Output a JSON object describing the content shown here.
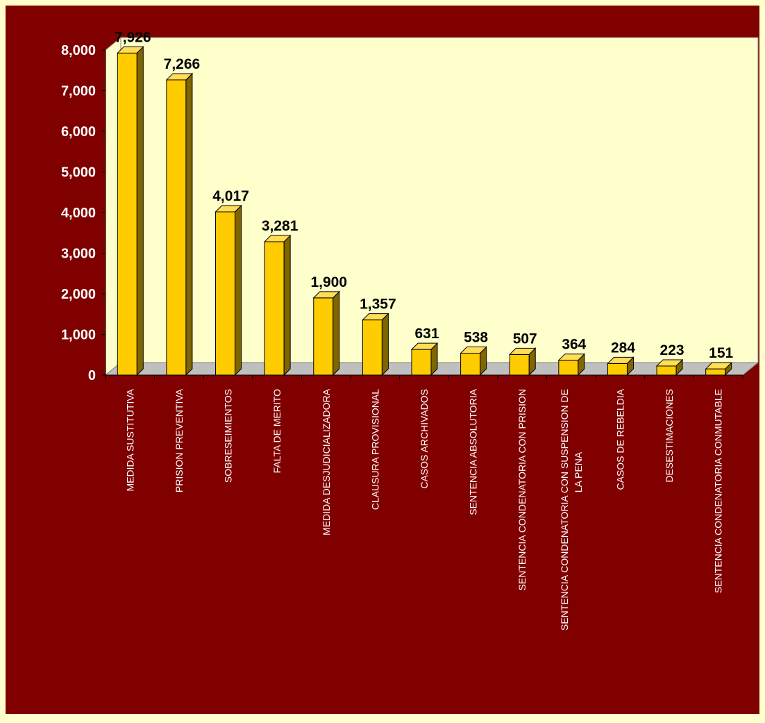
{
  "colors": {
    "page_border": "#ffffcc",
    "background": "#800000",
    "plot_area": "#ffffcc",
    "floor": "#bfbfbf",
    "bar_front": "#ffcc00",
    "bar_side": "#806600",
    "bar_top": "#ffdd55",
    "bar_stroke": "#000000",
    "label_text": "#000000",
    "category_text": "#ffffff"
  },
  "chart_data": {
    "type": "bar",
    "style": "3d-column",
    "title": "",
    "xlabel": "",
    "ylabel": "",
    "ylim": [
      0,
      8000
    ],
    "yticks": [
      0,
      1000,
      2000,
      3000,
      4000,
      5000,
      6000,
      7000,
      8000
    ],
    "ytick_labels": [
      "0",
      "1,000",
      "2,000",
      "3,000",
      "4,000",
      "5,000",
      "6,000",
      "7,000",
      "8,000"
    ],
    "grid": false,
    "legend": "none",
    "categories": [
      [
        "MEDIDA SUSTITUTIVA"
      ],
      [
        "PRISION PREVENTIVA"
      ],
      [
        "SOBRESEIMIENTOS"
      ],
      [
        "FALTA DE MERITO"
      ],
      [
        "MEDIDA DESJUDICIALIZADORA"
      ],
      [
        "CLAUSURA PROVISIONAL"
      ],
      [
        "CASOS ARCHIVADOS"
      ],
      [
        "SENTENCIA ABSOLUTORIA"
      ],
      [
        "SENTENCIA CONDENATORIA CON PRISION"
      ],
      [
        "SENTENCIA CONDENATORIA CON SUSPENSION DE",
        "LA PENA"
      ],
      [
        "CASOS DE REBELDIA"
      ],
      [
        "DESESTIMACIONES"
      ],
      [
        "SENTENCIA CONDENATORIA CONMUTABLE"
      ]
    ],
    "values": [
      7926,
      7266,
      4017,
      3281,
      1900,
      1357,
      631,
      538,
      507,
      364,
      284,
      223,
      151
    ],
    "data_labels": [
      "7,926",
      "7,266",
      "4,017",
      "3,281",
      "1,900",
      "1,357",
      "631",
      "538",
      "507",
      "364",
      "284",
      "223",
      "151"
    ]
  }
}
